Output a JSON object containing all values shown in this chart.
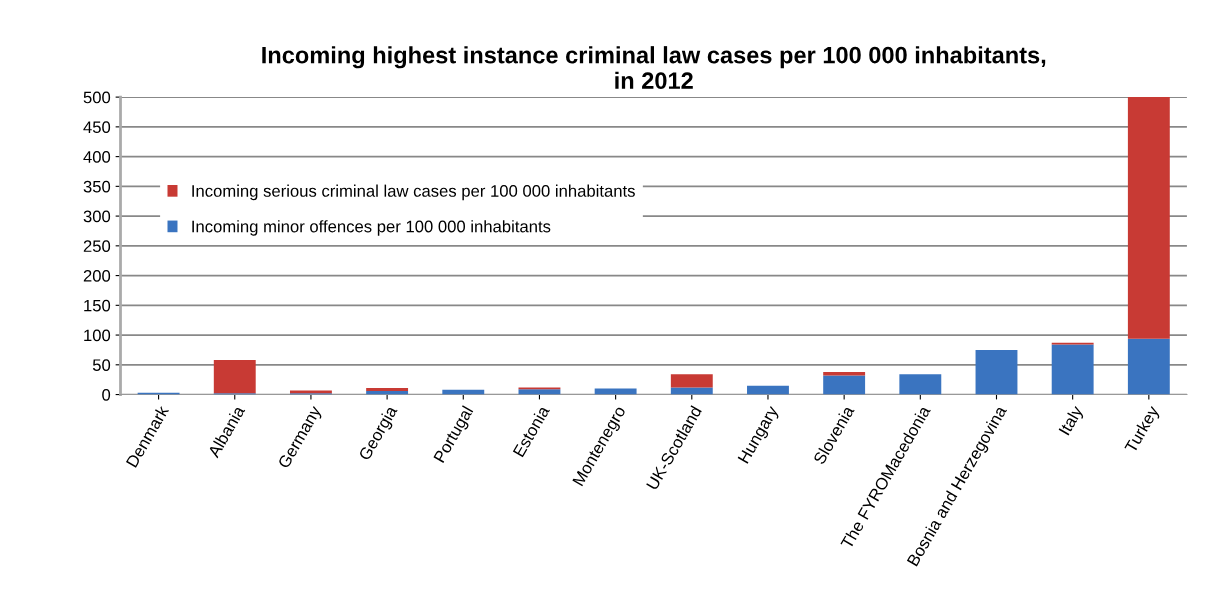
{
  "chart_data": {
    "type": "bar",
    "stacked": true,
    "title": "Incoming highest instance criminal law cases per 100 000 inhabitants,\nin 2012",
    "categories": [
      "Denmark",
      "Albania",
      "Germany",
      "Georgia",
      "Portugal",
      "Estonia",
      "Montenegro",
      "UK-Scotland",
      "Hungary",
      "Slovenia",
      "The FYROMacedonia",
      "Bosnia and Herzegovina",
      "Italy",
      "Turkey"
    ],
    "series": [
      {
        "name": "Incoming minor offences per 100 000 inhabitants",
        "color": "#3a74c0",
        "values": [
          3,
          2,
          2,
          6,
          8,
          9,
          10,
          12,
          15,
          32,
          34,
          75,
          84,
          94
        ]
      },
      {
        "name": "Incoming serious criminal law cases per 100 000 inhabitants",
        "color": "#c83a34",
        "values": [
          0,
          56,
          5,
          5,
          0,
          3,
          0,
          22,
          0,
          6,
          0,
          0,
          3,
          406
        ]
      }
    ],
    "ylim": [
      0,
      500
    ],
    "yticks": [
      0,
      50,
      100,
      150,
      200,
      250,
      300,
      350,
      400,
      450,
      500
    ],
    "grid": "y",
    "legend": "left"
  }
}
